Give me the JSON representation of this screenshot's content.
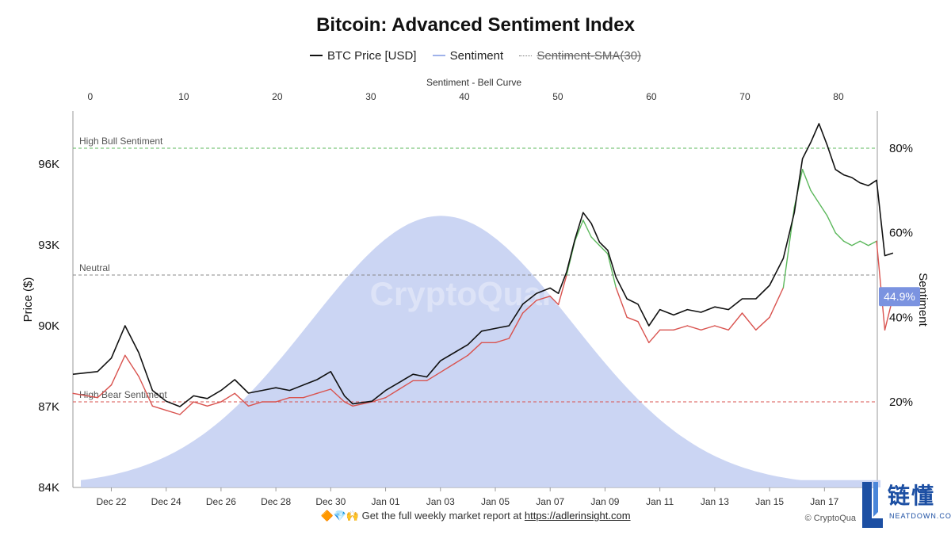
{
  "title": "Bitcoin: Advanced Sentiment Index",
  "legend": {
    "btc_label": "BTC Price [USD]",
    "sentiment_label": "Sentiment",
    "sma_label": "Sentiment-SMA(30)"
  },
  "colors": {
    "btc": "#111111",
    "sentiment_up": "#5cb85c",
    "sentiment_down": "#d9534f",
    "bell_fill": "#c5d0f2",
    "bull_line": "#5cb85c",
    "bear_line": "#d9534f",
    "neutral_line": "#888888",
    "badge": "#7b93e0"
  },
  "chart_data": {
    "type": "line",
    "title": "Bitcoin: Advanced Sentiment Index",
    "top_axis": {
      "label": "Sentiment - Bell Curve",
      "ticks": [
        0,
        10,
        20,
        30,
        40,
        50,
        60,
        70,
        80
      ],
      "range": [
        -1,
        85
      ]
    },
    "left_axis": {
      "label": "Price ($)",
      "ticks": [
        "84K",
        "87K",
        "90K",
        "93K",
        "96K"
      ],
      "tick_values": [
        84000,
        87000,
        90000,
        93000,
        96000
      ],
      "range": [
        84000,
        96000
      ]
    },
    "right_axis": {
      "label": "Sentiment",
      "ticks": [
        "20%",
        "40%",
        "60%",
        "80%"
      ],
      "tick_values": [
        20,
        40,
        60,
        80
      ],
      "range": [
        0,
        89
      ]
    },
    "x_axis": {
      "ticks": [
        "Dec 22",
        "Dec 24",
        "Dec 26",
        "Dec 28",
        "Dec 30",
        "Jan 01",
        "Jan 03",
        "Jan 05",
        "Jan 07",
        "Jan 09",
        "Jan 11",
        "Jan 13",
        "Jan 15",
        "Jan 17"
      ],
      "range_days": [
        -1.4,
        26.9
      ]
    },
    "reference_lines": [
      {
        "label": "High Bull Sentiment",
        "value": 80
      },
      {
        "label": "Neutral",
        "value": 50
      },
      {
        "label": "High Bear Sentiment",
        "value": 20
      }
    ],
    "current_sentiment_label": "44.9%",
    "bell_curve": {
      "mean": 37.5,
      "peak_sentiment": 64,
      "sigma": 14
    },
    "btc_series": {
      "name": "BTC Price [USD]",
      "points": [
        [
          -1.4,
          88200
        ],
        [
          -0.5,
          88300
        ],
        [
          0.0,
          88800
        ],
        [
          0.5,
          90000
        ],
        [
          1.0,
          89000
        ],
        [
          1.5,
          87600
        ],
        [
          2.0,
          87200
        ],
        [
          2.5,
          87000
        ],
        [
          3.0,
          87400
        ],
        [
          3.5,
          87300
        ],
        [
          4.0,
          87600
        ],
        [
          4.5,
          88000
        ],
        [
          5.0,
          87500
        ],
        [
          5.5,
          87600
        ],
        [
          6.0,
          87700
        ],
        [
          6.5,
          87600
        ],
        [
          7.0,
          87800
        ],
        [
          7.5,
          88000
        ],
        [
          8.0,
          88300
        ],
        [
          8.5,
          87400
        ],
        [
          8.8,
          87100
        ],
        [
          9.5,
          87200
        ],
        [
          10.0,
          87600
        ],
        [
          10.5,
          87900
        ],
        [
          11.0,
          88200
        ],
        [
          11.5,
          88100
        ],
        [
          12.0,
          88700
        ],
        [
          12.5,
          89000
        ],
        [
          13.0,
          89300
        ],
        [
          13.5,
          89800
        ],
        [
          14.0,
          89900
        ],
        [
          14.5,
          90000
        ],
        [
          15.0,
          90800
        ],
        [
          15.5,
          91200
        ],
        [
          16.0,
          91400
        ],
        [
          16.3,
          91200
        ],
        [
          16.6,
          92000
        ],
        [
          16.9,
          93200
        ],
        [
          17.2,
          94200
        ],
        [
          17.5,
          93800
        ],
        [
          17.8,
          93100
        ],
        [
          18.1,
          92800
        ],
        [
          18.4,
          91800
        ],
        [
          18.8,
          91000
        ],
        [
          19.2,
          90800
        ],
        [
          19.6,
          90000
        ],
        [
          20.0,
          90600
        ],
        [
          20.5,
          90400
        ],
        [
          21.0,
          90600
        ],
        [
          21.5,
          90500
        ],
        [
          22.0,
          90700
        ],
        [
          22.5,
          90600
        ],
        [
          23.0,
          91000
        ],
        [
          23.5,
          91000
        ],
        [
          24.0,
          91500
        ],
        [
          24.5,
          92500
        ],
        [
          24.9,
          94200
        ],
        [
          25.2,
          96200
        ],
        [
          25.5,
          96800
        ],
        [
          25.8,
          97500
        ],
        [
          26.1,
          96700
        ],
        [
          26.4,
          95800
        ],
        [
          26.7,
          95600
        ],
        [
          27.0,
          95500
        ],
        [
          27.3,
          95300
        ],
        [
          27.6,
          95200
        ],
        [
          27.9,
          95400
        ],
        [
          28.2,
          92600
        ],
        [
          28.5,
          92700
        ]
      ]
    },
    "sentiment_series": {
      "name": "Sentiment",
      "points": [
        [
          -1.4,
          22
        ],
        [
          -0.5,
          21
        ],
        [
          0.0,
          24
        ],
        [
          0.5,
          31
        ],
        [
          1.0,
          26
        ],
        [
          1.5,
          19
        ],
        [
          2.0,
          18
        ],
        [
          2.5,
          17
        ],
        [
          3.0,
          20
        ],
        [
          3.5,
          19
        ],
        [
          4.0,
          20
        ],
        [
          4.5,
          22
        ],
        [
          5.0,
          19
        ],
        [
          5.5,
          20
        ],
        [
          6.0,
          20
        ],
        [
          6.5,
          21
        ],
        [
          7.0,
          21
        ],
        [
          7.5,
          22
        ],
        [
          8.0,
          23
        ],
        [
          8.5,
          20
        ],
        [
          8.8,
          19
        ],
        [
          9.5,
          20
        ],
        [
          10.0,
          21
        ],
        [
          10.5,
          23
        ],
        [
          11.0,
          25
        ],
        [
          11.5,
          25
        ],
        [
          12.0,
          27
        ],
        [
          12.5,
          29
        ],
        [
          13.0,
          31
        ],
        [
          13.5,
          34
        ],
        [
          14.0,
          34
        ],
        [
          14.5,
          35
        ],
        [
          15.0,
          41
        ],
        [
          15.5,
          44
        ],
        [
          16.0,
          45
        ],
        [
          16.3,
          43
        ],
        [
          16.6,
          50
        ],
        [
          16.9,
          58
        ],
        [
          17.2,
          63
        ],
        [
          17.5,
          59
        ],
        [
          17.8,
          57
        ],
        [
          18.1,
          55
        ],
        [
          18.4,
          47
        ],
        [
          18.8,
          40
        ],
        [
          19.2,
          39
        ],
        [
          19.6,
          34
        ],
        [
          20.0,
          37
        ],
        [
          20.5,
          37
        ],
        [
          21.0,
          38
        ],
        [
          21.5,
          37
        ],
        [
          22.0,
          38
        ],
        [
          22.5,
          37
        ],
        [
          23.0,
          41
        ],
        [
          23.5,
          37
        ],
        [
          24.0,
          40
        ],
        [
          24.5,
          47
        ],
        [
          24.9,
          66
        ],
        [
          25.2,
          75
        ],
        [
          25.5,
          70
        ],
        [
          25.8,
          67
        ],
        [
          26.1,
          64
        ],
        [
          26.4,
          60
        ],
        [
          26.7,
          58
        ],
        [
          27.0,
          57
        ],
        [
          27.3,
          58
        ],
        [
          27.6,
          57
        ],
        [
          27.9,
          58
        ],
        [
          28.2,
          37
        ],
        [
          28.5,
          44.9
        ]
      ]
    }
  },
  "footer": {
    "text": "Get the full weekly market report at",
    "url": "https://adlerinsight.com",
    "emoji": "🔶💎🙌",
    "credit": "© CryptoQua"
  },
  "watermark": "CryptoQuant",
  "logo": {
    "text": "链懂",
    "sub": "NEATDOWN.COM"
  }
}
